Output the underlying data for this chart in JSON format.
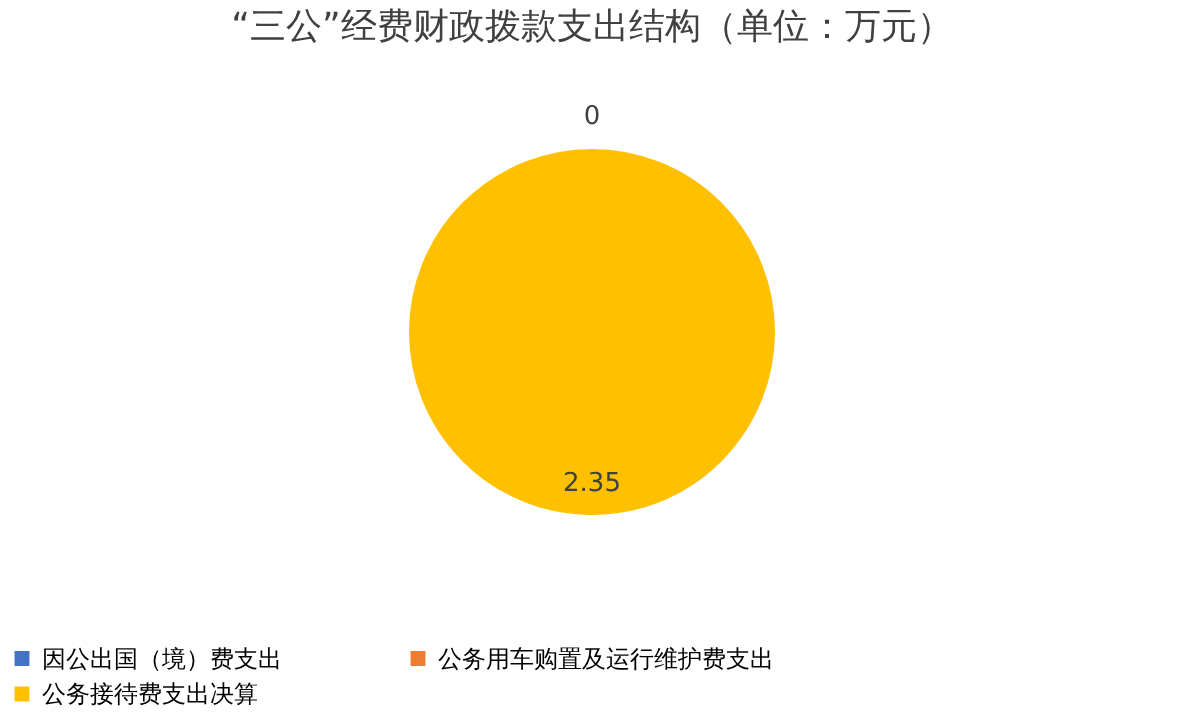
{
  "chart_data": {
    "type": "pie",
    "title": "“三公”经费财政拨款支出结构（单位：万元）",
    "categories": [
      "因公出国（境）费支出",
      "公务用车购置及运行维护费支出",
      "公务接待费支出决算"
    ],
    "values": [
      0,
      0,
      2.35
    ],
    "colors": [
      "#4472c4",
      "#ed7d31",
      "#ffc000"
    ],
    "value_labels": [
      "0",
      null,
      "2.35"
    ],
    "legend": "bottom"
  }
}
